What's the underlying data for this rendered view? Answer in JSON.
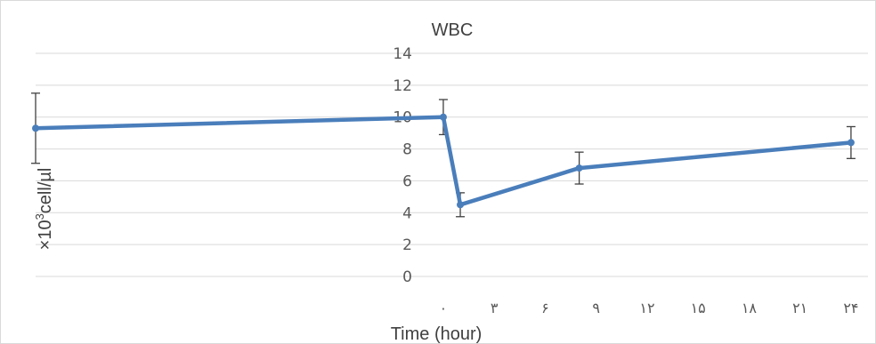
{
  "chart_data": {
    "type": "line",
    "title": "WBC",
    "xlabel": "Time (hour)",
    "ylabel_main": "×10",
    "ylabel_sup": "3",
    "ylabel_rest": "cell/µl",
    "x_ticks": [
      "۰",
      "۳",
      "۶",
      "۹",
      "۱۲",
      "۱۵",
      "۱۸",
      "۲۱",
      "۲۴"
    ],
    "x_tick_values": [
      0,
      3,
      6,
      9,
      12,
      15,
      18,
      21,
      24
    ],
    "xlim": [
      -24,
      25
    ],
    "ylim": [
      0,
      14
    ],
    "y_ticks": [
      0,
      2,
      4,
      6,
      8,
      10,
      12,
      14
    ],
    "grid": true,
    "line_color": "#4a7ebb",
    "series": [
      {
        "x": [
          -24,
          0,
          1,
          8,
          24
        ],
        "values": [
          9.3,
          10.0,
          4.5,
          6.8,
          8.4
        ],
        "error": [
          2.2,
          1.1,
          0.75,
          1.0,
          1.0
        ]
      }
    ]
  }
}
